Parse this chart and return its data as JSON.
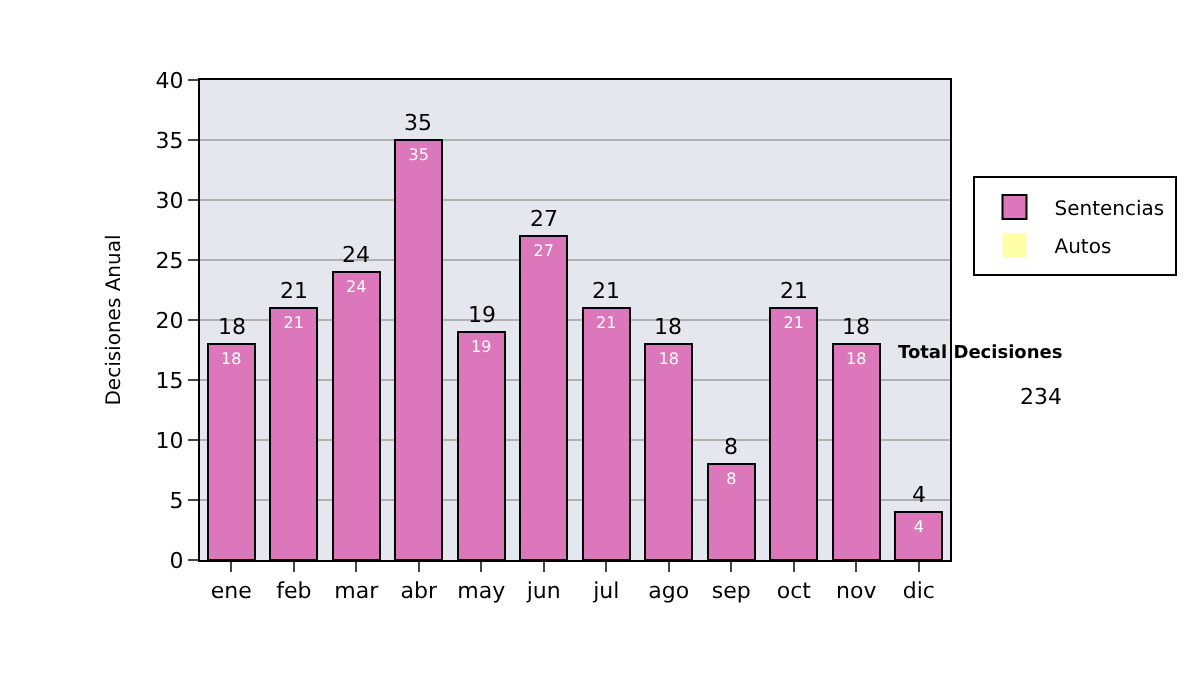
{
  "chart_data": {
    "type": "bar",
    "ylabel": "Decisiones Anual",
    "categories": [
      "ene",
      "feb",
      "mar",
      "abr",
      "may",
      "jun",
      "jul",
      "ago",
      "sep",
      "oct",
      "nov",
      "dic"
    ],
    "stacked": true,
    "series": [
      {
        "name": "Sentencias",
        "color": "#dd77bb",
        "values": [
          18,
          21,
          24,
          35,
          19,
          27,
          21,
          18,
          8,
          21,
          18,
          4
        ],
        "value_labels": [
          "18",
          "21",
          "24",
          "35",
          "19",
          "27",
          "21",
          "18",
          "8",
          "21",
          "18",
          "4"
        ]
      },
      {
        "name": "Autos",
        "color": "#ffffaa",
        "values": [
          0,
          0,
          0,
          0,
          0,
          0,
          0,
          0,
          0,
          0,
          0,
          0
        ]
      }
    ],
    "totals": [
      "18",
      "21",
      "24",
      "35",
      "19",
      "27",
      "21",
      "18",
      "8",
      "21",
      "18",
      "4"
    ],
    "ylim": [
      0,
      40
    ],
    "yticks": [
      0,
      5,
      10,
      15,
      20,
      25,
      30,
      35,
      40
    ],
    "grid": "y",
    "legend": "right",
    "annotations": [
      "Total Decisiones",
      "234"
    ]
  }
}
